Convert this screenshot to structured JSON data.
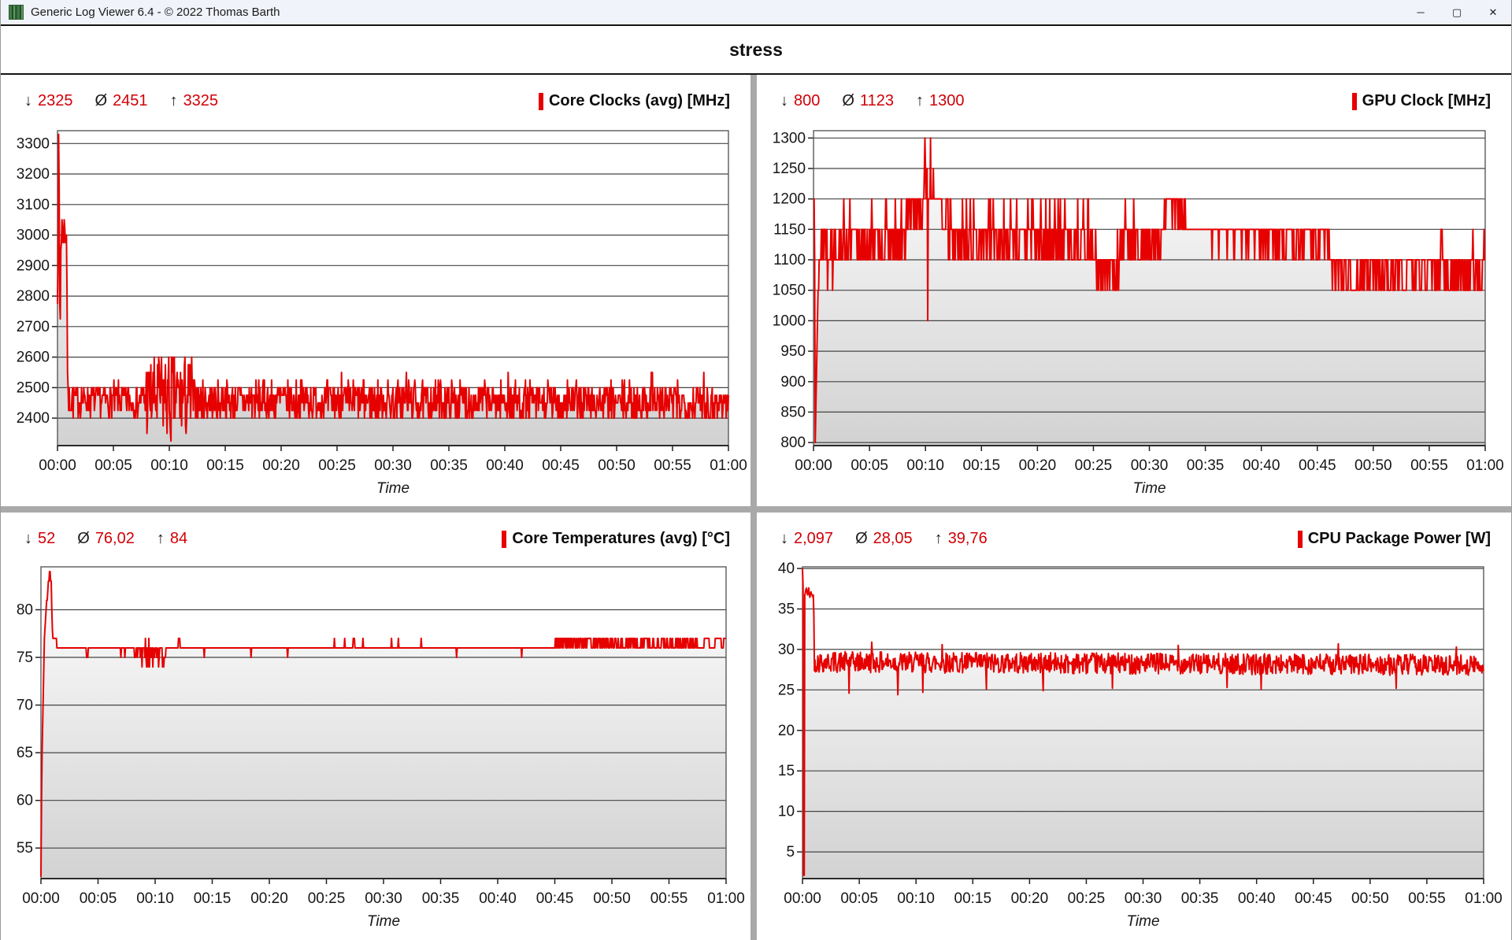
{
  "window": {
    "title": "Generic Log Viewer 6.4 - © 2022 Thomas Barth",
    "controls": {
      "minimize": "─",
      "maximize": "▢",
      "close": "✕"
    }
  },
  "header": {
    "title": "stress"
  },
  "stats_symbols": {
    "min": "↓",
    "avg": "Ø",
    "max": "↑"
  },
  "colors": {
    "series": "#e60000",
    "stat_number": "#d00007",
    "grid_line": "#444444",
    "fill_top": "#ffffff",
    "fill_bottom": "#d2d2d2",
    "splitter": "#a9a9a9"
  },
  "time_axis": {
    "label": "Time",
    "ticks": [
      "00:00",
      "00:05",
      "00:10",
      "00:15",
      "00:20",
      "00:25",
      "00:30",
      "00:35",
      "00:40",
      "00:45",
      "00:50",
      "00:55",
      "01:00"
    ],
    "range_minutes": [
      0,
      60
    ]
  },
  "chart_data": [
    {
      "type": "line",
      "title": "Core Clocks (avg) [MHz]",
      "stats": {
        "min": "2325",
        "avg": "2451",
        "max": "3325"
      },
      "xlabel": "Time",
      "ylim": [
        2310,
        3342
      ],
      "y_ticks": [
        2400,
        2500,
        2600,
        2700,
        2800,
        2900,
        3000,
        3100,
        3200,
        3300
      ],
      "series": {
        "seed": 7,
        "quantize": 25,
        "clip": [
          2315,
          3330
        ],
        "base": [
          [
            0,
            2780
          ],
          [
            0.05,
            2950
          ],
          [
            0.1,
            3325
          ],
          [
            0.16,
            3100
          ],
          [
            0.22,
            2620
          ],
          [
            0.3,
            2940
          ],
          [
            0.42,
            3060
          ],
          [
            0.52,
            2950
          ],
          [
            0.62,
            3050
          ],
          [
            0.72,
            2955
          ],
          [
            0.8,
            3010
          ],
          [
            0.86,
            2800
          ],
          [
            0.92,
            2452
          ],
          [
            60,
            2443
          ]
        ],
        "noise": [
          [
            0,
            -15,
            15
          ],
          [
            0.9,
            -15,
            15
          ],
          [
            1.0,
            -48,
            62
          ],
          [
            7.6,
            -48,
            62
          ],
          [
            7.9,
            -120,
            158
          ],
          [
            12.0,
            -120,
            158
          ],
          [
            12.3,
            -55,
            72
          ],
          [
            60,
            -55,
            72
          ]
        ],
        "events": [
          {
            "t": 10.15,
            "v": 2325,
            "w": 0.06
          },
          {
            "t": 25.4,
            "v": 2550,
            "w": 0.07
          },
          {
            "t": 31.2,
            "v": 2540,
            "w": 0.06
          },
          {
            "t": 40.3,
            "v": 2545,
            "w": 0.06
          },
          {
            "t": 45.6,
            "v": 2535,
            "w": 0.06
          },
          {
            "t": 53.15,
            "v": 2560,
            "w": 0.1
          },
          {
            "t": 57.8,
            "v": 2540,
            "w": 0.06
          }
        ]
      }
    },
    {
      "type": "line",
      "title": "GPU Clock [MHz]",
      "stats": {
        "min": "800",
        "avg": "1123",
        "max": "1300"
      },
      "xlabel": "Time",
      "ylim": [
        795,
        1312
      ],
      "y_ticks": [
        800,
        850,
        900,
        950,
        1000,
        1050,
        1100,
        1150,
        1200,
        1250,
        1300
      ],
      "series": {
        "seed": 13,
        "quantize": 50,
        "clip": [
          800,
          1300
        ],
        "base": [
          [
            0,
            1200
          ],
          [
            0.08,
            1200
          ],
          [
            0.15,
            810
          ],
          [
            0.25,
            900
          ],
          [
            0.35,
            1000
          ],
          [
            0.5,
            1085
          ],
          [
            0.65,
            1125
          ],
          [
            8.1,
            1125
          ],
          [
            8.4,
            1172
          ],
          [
            9.6,
            1172
          ],
          [
            9.9,
            1210
          ],
          [
            11.0,
            1210
          ],
          [
            11.4,
            1180
          ],
          [
            11.9,
            1150
          ],
          [
            12.3,
            1128
          ],
          [
            24.9,
            1128
          ],
          [
            25.3,
            1078
          ],
          [
            27.1,
            1078
          ],
          [
            27.5,
            1126
          ],
          [
            31.1,
            1126
          ],
          [
            31.5,
            1192
          ],
          [
            32.9,
            1192
          ],
          [
            33.3,
            1152
          ],
          [
            39.9,
            1152
          ],
          [
            40.1,
            1136
          ],
          [
            45.9,
            1136
          ],
          [
            46.3,
            1076
          ],
          [
            59.6,
            1076
          ],
          [
            59.8,
            1100
          ],
          [
            60,
            1100
          ]
        ],
        "noise": [
          [
            0,
            -8,
            8
          ],
          [
            0.6,
            -8,
            8
          ],
          [
            0.75,
            -42,
            56
          ],
          [
            8.1,
            -42,
            56
          ],
          [
            8.4,
            -28,
            45
          ],
          [
            9.6,
            -28,
            45
          ],
          [
            9.9,
            -20,
            25
          ],
          [
            11.0,
            -20,
            25
          ],
          [
            11.5,
            -35,
            35
          ],
          [
            12.3,
            -42,
            56
          ],
          [
            24.9,
            -42,
            56
          ],
          [
            25.3,
            -32,
            45
          ],
          [
            27.1,
            -32,
            45
          ],
          [
            27.5,
            -42,
            56
          ],
          [
            31.1,
            -30,
            30
          ],
          [
            33.0,
            -30,
            30
          ],
          [
            33.4,
            -32,
            20
          ],
          [
            39.9,
            -32,
            20
          ],
          [
            40.1,
            -30,
            30
          ],
          [
            45.9,
            -30,
            30
          ],
          [
            46.3,
            -33,
            45
          ],
          [
            60,
            -33,
            45
          ]
        ],
        "events": [
          {
            "t": 1.25,
            "v": 1050,
            "w": 0.06
          },
          {
            "t": 1.7,
            "v": 1050,
            "w": 0.06
          },
          {
            "t": 9.95,
            "v": 1300,
            "w": 0.07
          },
          {
            "t": 10.2,
            "v": 1000,
            "w": 0.06
          },
          {
            "t": 10.45,
            "v": 1300,
            "w": 0.07
          },
          {
            "t": 10.7,
            "v": 1250,
            "w": 0.06
          },
          {
            "t": 17.6,
            "v": 1200,
            "w": 0.06
          },
          {
            "t": 21.1,
            "v": 1200,
            "w": 0.06
          },
          {
            "t": 28.6,
            "v": 1200,
            "w": 0.06
          },
          {
            "t": 56.1,
            "v": 1150,
            "w": 0.1
          },
          {
            "t": 58.9,
            "v": 1150,
            "w": 0.06
          }
        ]
      }
    },
    {
      "type": "line",
      "title": "Core Temperatures (avg) [°C]",
      "stats": {
        "min": "52",
        "avg": "76,02",
        "max": "84"
      },
      "xlabel": "Time",
      "ylim": [
        51.8,
        84.5
      ],
      "y_ticks": [
        55,
        60,
        65,
        70,
        75,
        80
      ],
      "series": {
        "seed": 21,
        "quantize": 1,
        "clip": [
          52,
          85
        ],
        "base": [
          [
            0,
            52
          ],
          [
            0.07,
            63
          ],
          [
            0.18,
            70
          ],
          [
            0.32,
            77.6
          ],
          [
            0.5,
            80.5
          ],
          [
            0.68,
            83
          ],
          [
            0.8,
            84.3
          ],
          [
            0.9,
            82.5
          ],
          [
            0.98,
            78.5
          ],
          [
            1.05,
            77.4
          ],
          [
            1.32,
            77.4
          ],
          [
            1.4,
            76.3
          ],
          [
            60,
            76.3
          ]
        ],
        "noise": [
          [
            0,
            0,
            0
          ],
          [
            7.9,
            0,
            0
          ],
          [
            8.05,
            -2.4,
            0.4
          ],
          [
            10.95,
            -2.4,
            0.4
          ],
          [
            11.1,
            0,
            0
          ],
          [
            44.9,
            0,
            0
          ],
          [
            45.1,
            -0.35,
            0.65
          ],
          [
            57.4,
            -0.35,
            0.65
          ],
          [
            57.6,
            0,
            0
          ],
          [
            60,
            0,
            0
          ]
        ],
        "events": [
          {
            "t": 4.05,
            "v": 75.4,
            "w": 0.1
          },
          {
            "t": 7.0,
            "v": 75.4,
            "w": 0.08
          },
          {
            "t": 7.35,
            "v": 75.4,
            "w": 0.07
          },
          {
            "t": 12.1,
            "v": 77.4,
            "w": 0.12
          },
          {
            "t": 14.3,
            "v": 75.4,
            "w": 0.07
          },
          {
            "t": 18.4,
            "v": 75.4,
            "w": 0.06
          },
          {
            "t": 21.6,
            "v": 75.4,
            "w": 0.06
          },
          {
            "t": 25.7,
            "v": 77.4,
            "w": 0.07
          },
          {
            "t": 26.6,
            "v": 77.4,
            "w": 0.06
          },
          {
            "t": 27.4,
            "v": 77.4,
            "w": 0.1
          },
          {
            "t": 28.2,
            "v": 77.4,
            "w": 0.06
          },
          {
            "t": 30.7,
            "v": 77.4,
            "w": 0.07
          },
          {
            "t": 31.3,
            "v": 77.4,
            "w": 0.06
          },
          {
            "t": 33.3,
            "v": 77.4,
            "w": 0.06
          },
          {
            "t": 36.4,
            "v": 75.4,
            "w": 0.07
          },
          {
            "t": 42.1,
            "v": 75.4,
            "w": 0.06
          },
          {
            "t": 58.3,
            "v": 77.4,
            "w": 0.4
          },
          {
            "t": 59.3,
            "v": 77.4,
            "w": 0.5
          },
          {
            "t": 59.9,
            "v": 77.4,
            "w": 0.2
          }
        ]
      }
    },
    {
      "type": "line",
      "title": "CPU Package Power [W]",
      "stats": {
        "min": "2,097",
        "avg": "28,05",
        "max": "39,76"
      },
      "xlabel": "Time",
      "ylim": [
        1.7,
        40.2
      ],
      "y_ticks": [
        5,
        10,
        15,
        20,
        25,
        30,
        35,
        40
      ],
      "series": {
        "seed": 42,
        "quantize": 0,
        "clip": [
          1.9,
          40.1
        ],
        "base": [
          [
            0,
            39.9
          ],
          [
            0.06,
            37.2
          ],
          [
            0.14,
            38.2
          ],
          [
            0.22,
            36.6
          ],
          [
            0.32,
            37.9
          ],
          [
            0.42,
            36.4
          ],
          [
            0.52,
            37.6
          ],
          [
            0.62,
            36.3
          ],
          [
            0.72,
            37.4
          ],
          [
            0.82,
            36.4
          ],
          [
            0.9,
            37.0
          ],
          [
            0.98,
            36.6
          ],
          [
            1.04,
            28.4
          ],
          [
            60,
            28.0
          ]
        ],
        "noise": [
          [
            0,
            -0.5,
            0.5
          ],
          [
            0.98,
            -0.5,
            0.5
          ],
          [
            1.06,
            -1.25,
            1.35
          ],
          [
            60,
            -1.25,
            1.35
          ]
        ],
        "events": [
          {
            "t": 0.12,
            "v": 2.097,
            "w": 0.08
          },
          {
            "t": 4.1,
            "v": 24.6,
            "w": 0.06
          },
          {
            "t": 6.1,
            "v": 30.9,
            "w": 0.06
          },
          {
            "t": 8.4,
            "v": 24.4,
            "w": 0.06
          },
          {
            "t": 10.6,
            "v": 24.7,
            "w": 0.06
          },
          {
            "t": 12.3,
            "v": 30.6,
            "w": 0.06
          },
          {
            "t": 16.2,
            "v": 25.1,
            "w": 0.06
          },
          {
            "t": 21.2,
            "v": 24.9,
            "w": 0.06
          },
          {
            "t": 27.3,
            "v": 25.2,
            "w": 0.06
          },
          {
            "t": 33.1,
            "v": 30.5,
            "w": 0.06
          },
          {
            "t": 37.4,
            "v": 25.3,
            "w": 0.06
          },
          {
            "t": 40.4,
            "v": 25.1,
            "w": 0.06
          },
          {
            "t": 47.2,
            "v": 30.7,
            "w": 0.06
          },
          {
            "t": 52.3,
            "v": 25.2,
            "w": 0.06
          },
          {
            "t": 57.6,
            "v": 30.3,
            "w": 0.06
          }
        ]
      }
    }
  ]
}
